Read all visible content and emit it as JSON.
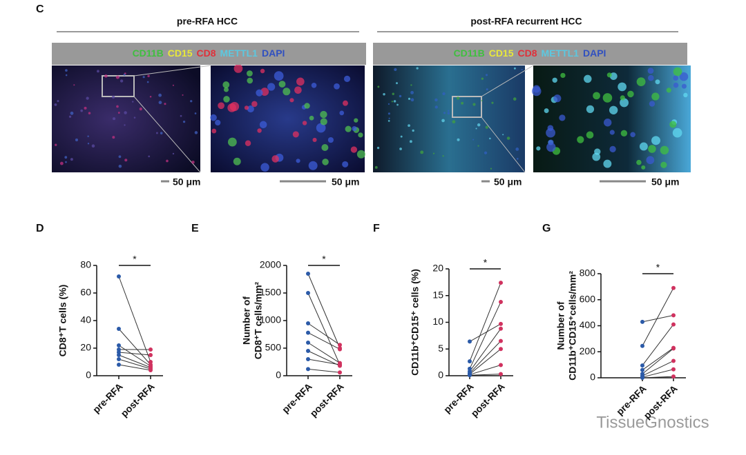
{
  "panel_c": {
    "label": "C",
    "groups": [
      {
        "title": "pre-RFA HCC",
        "scale_bars": [
          "50 μm",
          "50 μm"
        ]
      },
      {
        "title": "post-RFA recurrent HCC",
        "scale_bars": [
          "50 μm",
          "50 μm"
        ]
      }
    ],
    "markers": [
      {
        "text": "CD11B",
        "color": "#3fbf3f"
      },
      {
        "text": "CD15",
        "color": "#e8e83a"
      },
      {
        "text": "CD8",
        "color": "#e0303a"
      },
      {
        "text": "METTL1",
        "color": "#5cc8e0"
      },
      {
        "text": "DAPI",
        "color": "#3050c0"
      }
    ]
  },
  "watermark": "TissueGnostics",
  "chart_data": [
    {
      "type": "paired",
      "panel": "D",
      "ylabel": [
        "CD8⁺T cells (%)"
      ],
      "categories": [
        "pre-RFA",
        "post-RFA"
      ],
      "colors": [
        "#2b5aa8",
        "#d0325f"
      ],
      "significance": "*",
      "pairs": [
        [
          72,
          10
        ],
        [
          34,
          8
        ],
        [
          22,
          7
        ],
        [
          19,
          19
        ],
        [
          17,
          15
        ],
        [
          15,
          6
        ],
        [
          12,
          5
        ],
        [
          8,
          4
        ]
      ],
      "ylim": [
        0,
        80
      ],
      "yticks": [
        0,
        20,
        40,
        60,
        80
      ]
    },
    {
      "type": "paired",
      "panel": "E",
      "ylabel": [
        "Number of",
        "CD8⁺T cells/mm²"
      ],
      "categories": [
        "pre-RFA",
        "post-RFA"
      ],
      "colors": [
        "#2b5aa8",
        "#d0325f"
      ],
      "significance": "*",
      "pairs": [
        [
          1850,
          500
        ],
        [
          1500,
          200
        ],
        [
          950,
          560
        ],
        [
          780,
          480
        ],
        [
          600,
          230
        ],
        [
          450,
          180
        ],
        [
          300,
          200
        ],
        [
          120,
          60
        ]
      ],
      "ylim": [
        0,
        2000
      ],
      "yticks": [
        0,
        500,
        1000,
        1500,
        2000
      ]
    },
    {
      "type": "paired",
      "panel": "F",
      "ylabel": [
        "CD11b⁺CD15⁺ cells (%)"
      ],
      "categories": [
        "pre-RFA",
        "post-RFA"
      ],
      "colors": [
        "#2b5aa8",
        "#d0325f"
      ],
      "significance": "*",
      "pairs": [
        [
          6.4,
          9.7
        ],
        [
          2.7,
          17.4
        ],
        [
          1.3,
          13.8
        ],
        [
          0.8,
          8.8
        ],
        [
          0.5,
          6.5
        ],
        [
          0.3,
          5
        ],
        [
          0.2,
          2
        ],
        [
          0.1,
          0.3
        ]
      ],
      "ylim": [
        0,
        20
      ],
      "yticks": [
        0,
        5,
        10,
        15,
        20
      ]
    },
    {
      "type": "paired",
      "panel": "G",
      "ylabel": [
        "Number of",
        "CD11b⁺CD15⁺cells/mm²"
      ],
      "categories": [
        "pre-RFA",
        "post-RFA"
      ],
      "colors": [
        "#2b5aa8",
        "#d0325f"
      ],
      "significance": "*",
      "pairs": [
        [
          430,
          480
        ],
        [
          245,
          690
        ],
        [
          95,
          410
        ],
        [
          60,
          230
        ],
        [
          30,
          225
        ],
        [
          15,
          130
        ],
        [
          5,
          65
        ],
        [
          0,
          10
        ]
      ],
      "ylim": [
        0,
        800
      ],
      "yticks": [
        0,
        200,
        400,
        600,
        800
      ]
    }
  ]
}
